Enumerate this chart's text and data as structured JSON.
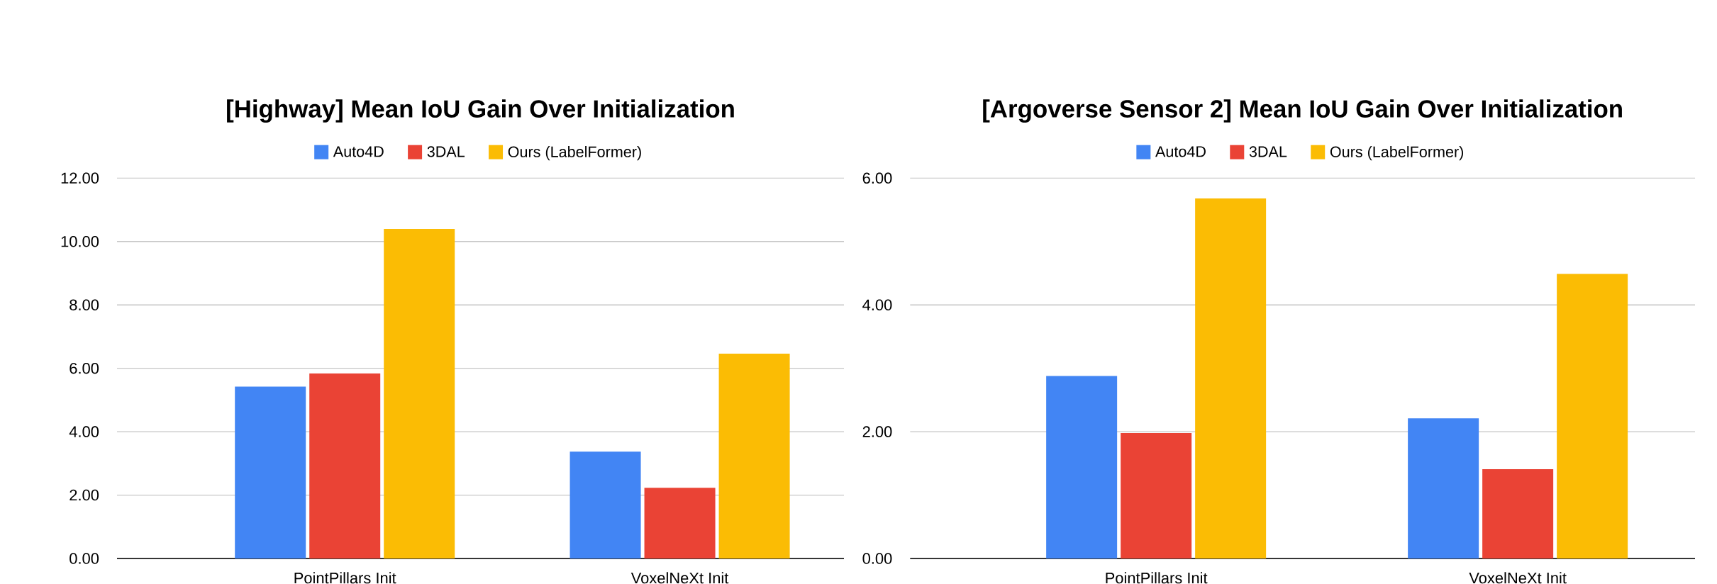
{
  "chart_data": [
    {
      "type": "bar",
      "title": "[Highway] Mean IoU Gain Over Initialization",
      "categories": [
        "PointPillars Init",
        "VoxelNeXt Init"
      ],
      "series": [
        {
          "name": "Auto4D",
          "color": "#4285f4",
          "values": [
            5.42,
            3.37
          ]
        },
        {
          "name": "3DAL",
          "color": "#ea4335",
          "values": [
            5.84,
            2.23
          ]
        },
        {
          "name": "Ours (LabelFormer)",
          "color": "#fbbc04",
          "values": [
            10.4,
            6.46
          ]
        }
      ],
      "ylim": [
        0,
        12
      ],
      "yticks": [
        {
          "value": 0,
          "label": "0.00"
        },
        {
          "value": 2,
          "label": "2.00"
        },
        {
          "value": 4,
          "label": "4.00"
        },
        {
          "value": 6,
          "label": "6.00"
        },
        {
          "value": 8,
          "label": "8.00"
        },
        {
          "value": 10,
          "label": "10.00"
        },
        {
          "value": 12,
          "label": "12.00"
        }
      ],
      "grid": "y",
      "legend": "top"
    },
    {
      "type": "bar",
      "title": "[Argoverse Sensor 2] Mean IoU Gain Over Initialization",
      "categories": [
        "PointPillars Init",
        "VoxelNeXt Init"
      ],
      "series": [
        {
          "name": "Auto4D",
          "color": "#4285f4",
          "values": [
            2.88,
            2.21
          ]
        },
        {
          "name": "3DAL",
          "color": "#ea4335",
          "values": [
            1.98,
            1.41
          ]
        },
        {
          "name": "Ours (LabelFormer)",
          "color": "#fbbc04",
          "values": [
            5.68,
            4.49
          ]
        }
      ],
      "ylim": [
        0,
        6
      ],
      "yticks": [
        {
          "value": 0,
          "label": "0.00"
        },
        {
          "value": 2,
          "label": "2.00"
        },
        {
          "value": 4,
          "label": "4.00"
        },
        {
          "value": 6,
          "label": "6.00"
        }
      ],
      "grid": "y",
      "legend": "top"
    }
  ]
}
